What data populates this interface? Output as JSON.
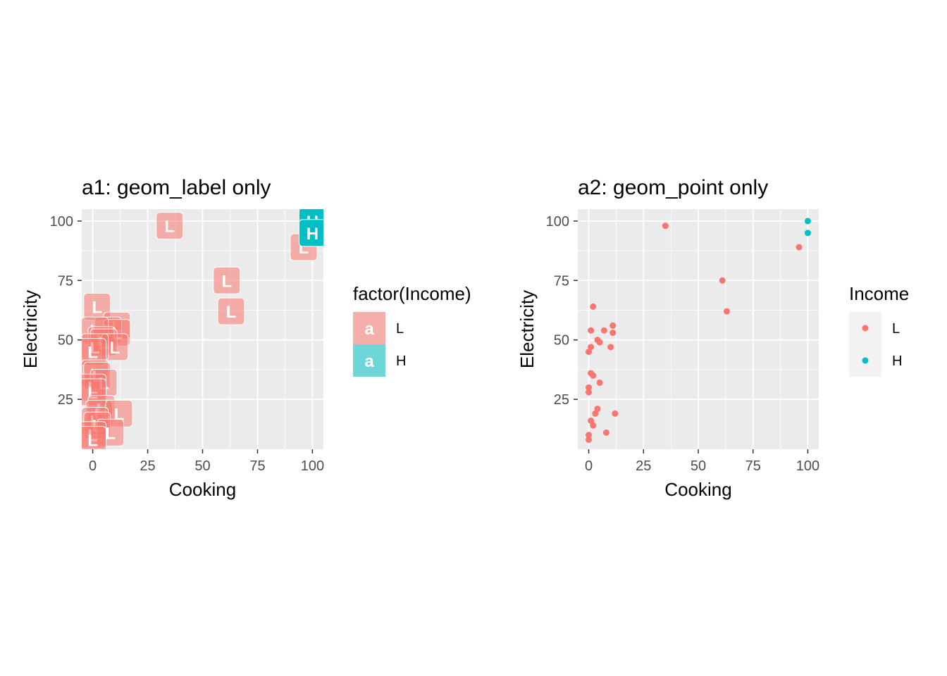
{
  "chart_data": [
    {
      "type": "scatter",
      "geom": "label",
      "title": "a1: geom_label only",
      "xlabel": "Cooking",
      "ylabel": "Electricity",
      "xlim": [
        -5,
        105
      ],
      "ylim": [
        4,
        105
      ],
      "x_ticks": [
        0,
        25,
        50,
        75,
        100
      ],
      "y_ticks": [
        25,
        50,
        75,
        100
      ],
      "grid": true,
      "legend": {
        "title": "factor(Income)",
        "position": "right",
        "key_glyph": "a",
        "entries": [
          {
            "label": "L",
            "color": "#F8766D"
          },
          {
            "label": "H",
            "color": "#00BFC4"
          }
        ]
      },
      "series": [
        {
          "name": "L",
          "color": "#F8766D",
          "points": [
            {
              "x": 35,
              "y": 98
            },
            {
              "x": 96,
              "y": 89
            },
            {
              "x": 61,
              "y": 75
            },
            {
              "x": 63,
              "y": 62
            },
            {
              "x": 2,
              "y": 64
            },
            {
              "x": 11,
              "y": 56
            },
            {
              "x": 7,
              "y": 54
            },
            {
              "x": 11,
              "y": 53
            },
            {
              "x": 1,
              "y": 54
            },
            {
              "x": 4,
              "y": 50
            },
            {
              "x": 5,
              "y": 49
            },
            {
              "x": 10,
              "y": 47
            },
            {
              "x": 1,
              "y": 47
            },
            {
              "x": 0,
              "y": 45
            },
            {
              "x": 1,
              "y": 36
            },
            {
              "x": 2,
              "y": 35
            },
            {
              "x": 5,
              "y": 32
            },
            {
              "x": 0,
              "y": 30
            },
            {
              "x": 0,
              "y": 28
            },
            {
              "x": 4,
              "y": 21
            },
            {
              "x": 3,
              "y": 19
            },
            {
              "x": 12,
              "y": 19
            },
            {
              "x": 1,
              "y": 16
            },
            {
              "x": 2,
              "y": 14
            },
            {
              "x": 8,
              "y": 11
            },
            {
              "x": 0,
              "y": 10
            },
            {
              "x": 0,
              "y": 8
            }
          ]
        },
        {
          "name": "H",
          "color": "#00BFC4",
          "points": [
            {
              "x": 100,
              "y": 100
            },
            {
              "x": 100,
              "y": 95
            }
          ]
        }
      ]
    },
    {
      "type": "scatter",
      "geom": "point",
      "title": "a2: geom_point only",
      "xlabel": "Cooking",
      "ylabel": "Electricity",
      "xlim": [
        -5,
        105
      ],
      "ylim": [
        4,
        105
      ],
      "x_ticks": [
        0,
        25,
        50,
        75,
        100
      ],
      "y_ticks": [
        25,
        50,
        75,
        100
      ],
      "grid": true,
      "legend": {
        "title": "Income",
        "position": "right",
        "entries": [
          {
            "label": "L",
            "color": "#F8766D"
          },
          {
            "label": "H",
            "color": "#00BFC4"
          }
        ]
      },
      "series": [
        {
          "name": "L",
          "color": "#F8766D",
          "points": [
            {
              "x": 35,
              "y": 98
            },
            {
              "x": 96,
              "y": 89
            },
            {
              "x": 61,
              "y": 75
            },
            {
              "x": 63,
              "y": 62
            },
            {
              "x": 2,
              "y": 64
            },
            {
              "x": 11,
              "y": 56
            },
            {
              "x": 7,
              "y": 54
            },
            {
              "x": 11,
              "y": 53
            },
            {
              "x": 1,
              "y": 54
            },
            {
              "x": 4,
              "y": 50
            },
            {
              "x": 5,
              "y": 49
            },
            {
              "x": 10,
              "y": 47
            },
            {
              "x": 1,
              "y": 47
            },
            {
              "x": 0,
              "y": 45
            },
            {
              "x": 1,
              "y": 36
            },
            {
              "x": 2,
              "y": 35
            },
            {
              "x": 5,
              "y": 32
            },
            {
              "x": 0,
              "y": 30
            },
            {
              "x": 0,
              "y": 28
            },
            {
              "x": 4,
              "y": 21
            },
            {
              "x": 3,
              "y": 19
            },
            {
              "x": 12,
              "y": 19
            },
            {
              "x": 1,
              "y": 16
            },
            {
              "x": 2,
              "y": 14
            },
            {
              "x": 8,
              "y": 11
            },
            {
              "x": 0,
              "y": 10
            },
            {
              "x": 0,
              "y": 8
            }
          ]
        },
        {
          "name": "H",
          "color": "#00BFC4",
          "points": [
            {
              "x": 100,
              "y": 100
            },
            {
              "x": 100,
              "y": 95
            }
          ]
        }
      ]
    }
  ]
}
